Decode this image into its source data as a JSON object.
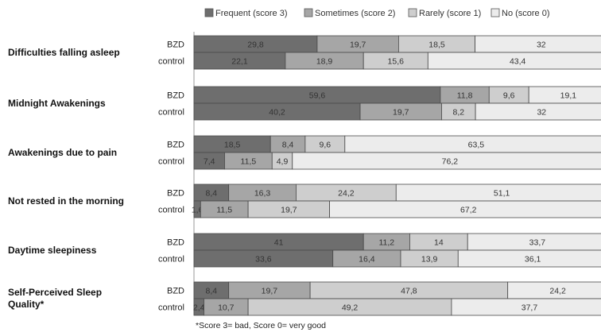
{
  "chart_data": {
    "type": "bar",
    "orientation": "horizontal",
    "stacked": true,
    "xlim": [
      0,
      100
    ],
    "legend_position": "top",
    "group_labels": [
      "BZD",
      "control"
    ],
    "series": [
      {
        "name": "Frequent (score 3)",
        "color": "#6e6e6e"
      },
      {
        "name": "Sometimes (score 2)",
        "color": "#a6a6a6"
      },
      {
        "name": "Rarely (score 1)",
        "color": "#cecece"
      },
      {
        "name": "No (score 0)",
        "color": "#ececec"
      }
    ],
    "categories": [
      {
        "label": "Difficulties falling asleep",
        "rows": [
          {
            "values": [
              29.8,
              19.7,
              18.5,
              32
            ],
            "labels": [
              "29,8",
              "19,7",
              "18,5",
              "32"
            ]
          },
          {
            "values": [
              22.1,
              18.9,
              15.6,
              43.4
            ],
            "labels": [
              "22,1",
              "18,9",
              "15,6",
              "43,4"
            ]
          }
        ]
      },
      {
        "label": "Midnight Awakenings",
        "rows": [
          {
            "values": [
              59.6,
              11.8,
              9.6,
              19.1
            ],
            "labels": [
              "59,6",
              "11,8",
              "9,6",
              "19,1"
            ]
          },
          {
            "values": [
              40.2,
              19.7,
              8.2,
              32
            ],
            "labels": [
              "40,2",
              "19,7",
              "8,2",
              "32"
            ]
          }
        ]
      },
      {
        "label": "Awakenings due to pain",
        "rows": [
          {
            "values": [
              18.5,
              8.4,
              9.6,
              63.5
            ],
            "labels": [
              "18,5",
              "8,4",
              "9,6",
              "63,5"
            ]
          },
          {
            "values": [
              7.4,
              11.5,
              4.9,
              76.2
            ],
            "labels": [
              "7,4",
              "11,5",
              "4,9",
              "76,2"
            ]
          }
        ]
      },
      {
        "label": "Not rested in the morning",
        "rows": [
          {
            "values": [
              8.4,
              16.3,
              24.2,
              51.1
            ],
            "labels": [
              "8,4",
              "16,3",
              "24,2",
              "51,1"
            ]
          },
          {
            "values": [
              1.6,
              11.5,
              19.7,
              67.2
            ],
            "labels": [
              "1,6",
              "11,5",
              "19,7",
              "67,2"
            ]
          }
        ]
      },
      {
        "label": "Daytime sleepiness",
        "rows": [
          {
            "values": [
              41,
              11.2,
              14,
              33.7
            ],
            "labels": [
              "41",
              "11,2",
              "14",
              "33,7"
            ]
          },
          {
            "values": [
              33.6,
              16.4,
              13.9,
              36.1
            ],
            "labels": [
              "33,6",
              "16,4",
              "13,9",
              "36,1"
            ]
          }
        ]
      },
      {
        "label": [
          "Self-Perceived Sleep",
          "Quality*"
        ],
        "rows": [
          {
            "values": [
              8.4,
              19.7,
              47.8,
              24.2
            ],
            "labels": [
              "8,4",
              "19,7",
              "47,8",
              "24,2"
            ]
          },
          {
            "values": [
              2.4,
              10.7,
              49.2,
              37.7
            ],
            "labels": [
              "2,4",
              "10,7",
              "49,2",
              "37,7"
            ]
          }
        ]
      }
    ],
    "footnote": "*Score 3= bad, Score 0= very good"
  }
}
